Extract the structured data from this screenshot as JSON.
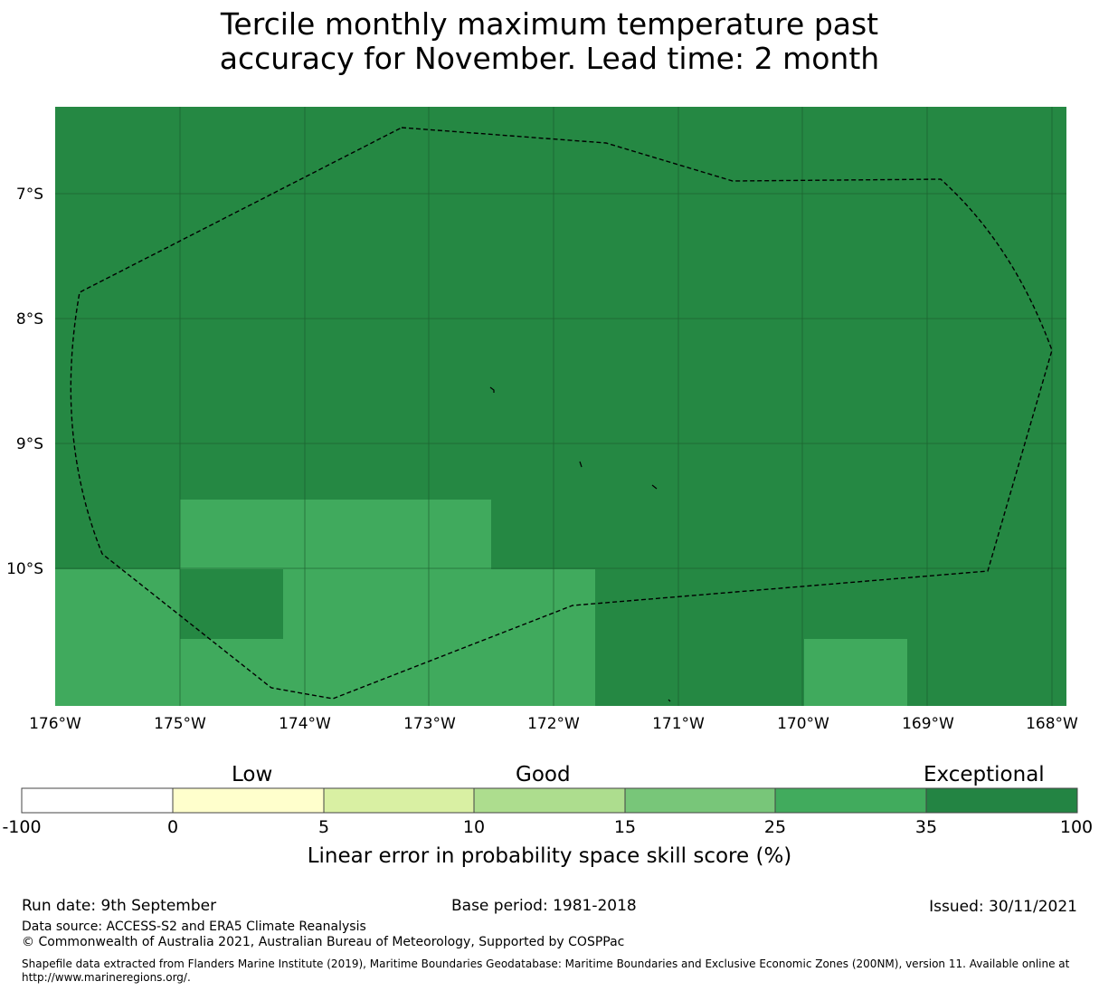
{
  "title": {
    "line1": "Tercile monthly maximum temperature past",
    "line2": "accuracy for November. Lead time: 2 month"
  },
  "map": {
    "lat_labels": [
      "7°S",
      "8°S",
      "9°S",
      "10°S"
    ],
    "lon_labels": [
      "176°W",
      "175°W",
      "174°W",
      "173°W",
      "172°W",
      "171°W",
      "170°W",
      "169°W",
      "168°W"
    ],
    "colors": {
      "exceptional_dark": "#258843",
      "good_mid": "#40aa5d",
      "grid": "#1a5a2c",
      "boundary": "#000000"
    }
  },
  "colorbar": {
    "category_words": [
      "Low",
      "Good",
      "Exceptional"
    ],
    "ticks": [
      "-100",
      "0",
      "5",
      "10",
      "15",
      "25",
      "35",
      "100"
    ],
    "colors": [
      "#ffffff",
      "#ffffcc",
      "#d9f0a3",
      "#addd8e",
      "#78c679",
      "#41ab5d",
      "#238443"
    ],
    "label": "Linear error in probability space skill score (%)"
  },
  "footer": {
    "run_date": "Run date: 9th September",
    "base_period": "Base period: 1981-2018",
    "issued": "Issued: 30/11/2021",
    "data_source": "Data source: ACCESS-S2 and ERA5 Climate Reanalysis",
    "copyright": "© Commonwealth of Australia 2021, Australian Bureau of Meteorology, Supported by COSPPac",
    "shapefile_line1": "Shapefile data extracted from Flanders Marine Institute (2019), Maritime Boundaries Geodatabase: Maritime Boundaries and Exclusive Economic Zones (200NM), version 11. Available online at",
    "shapefile_line2": "http://www.marineregions.org/."
  }
}
